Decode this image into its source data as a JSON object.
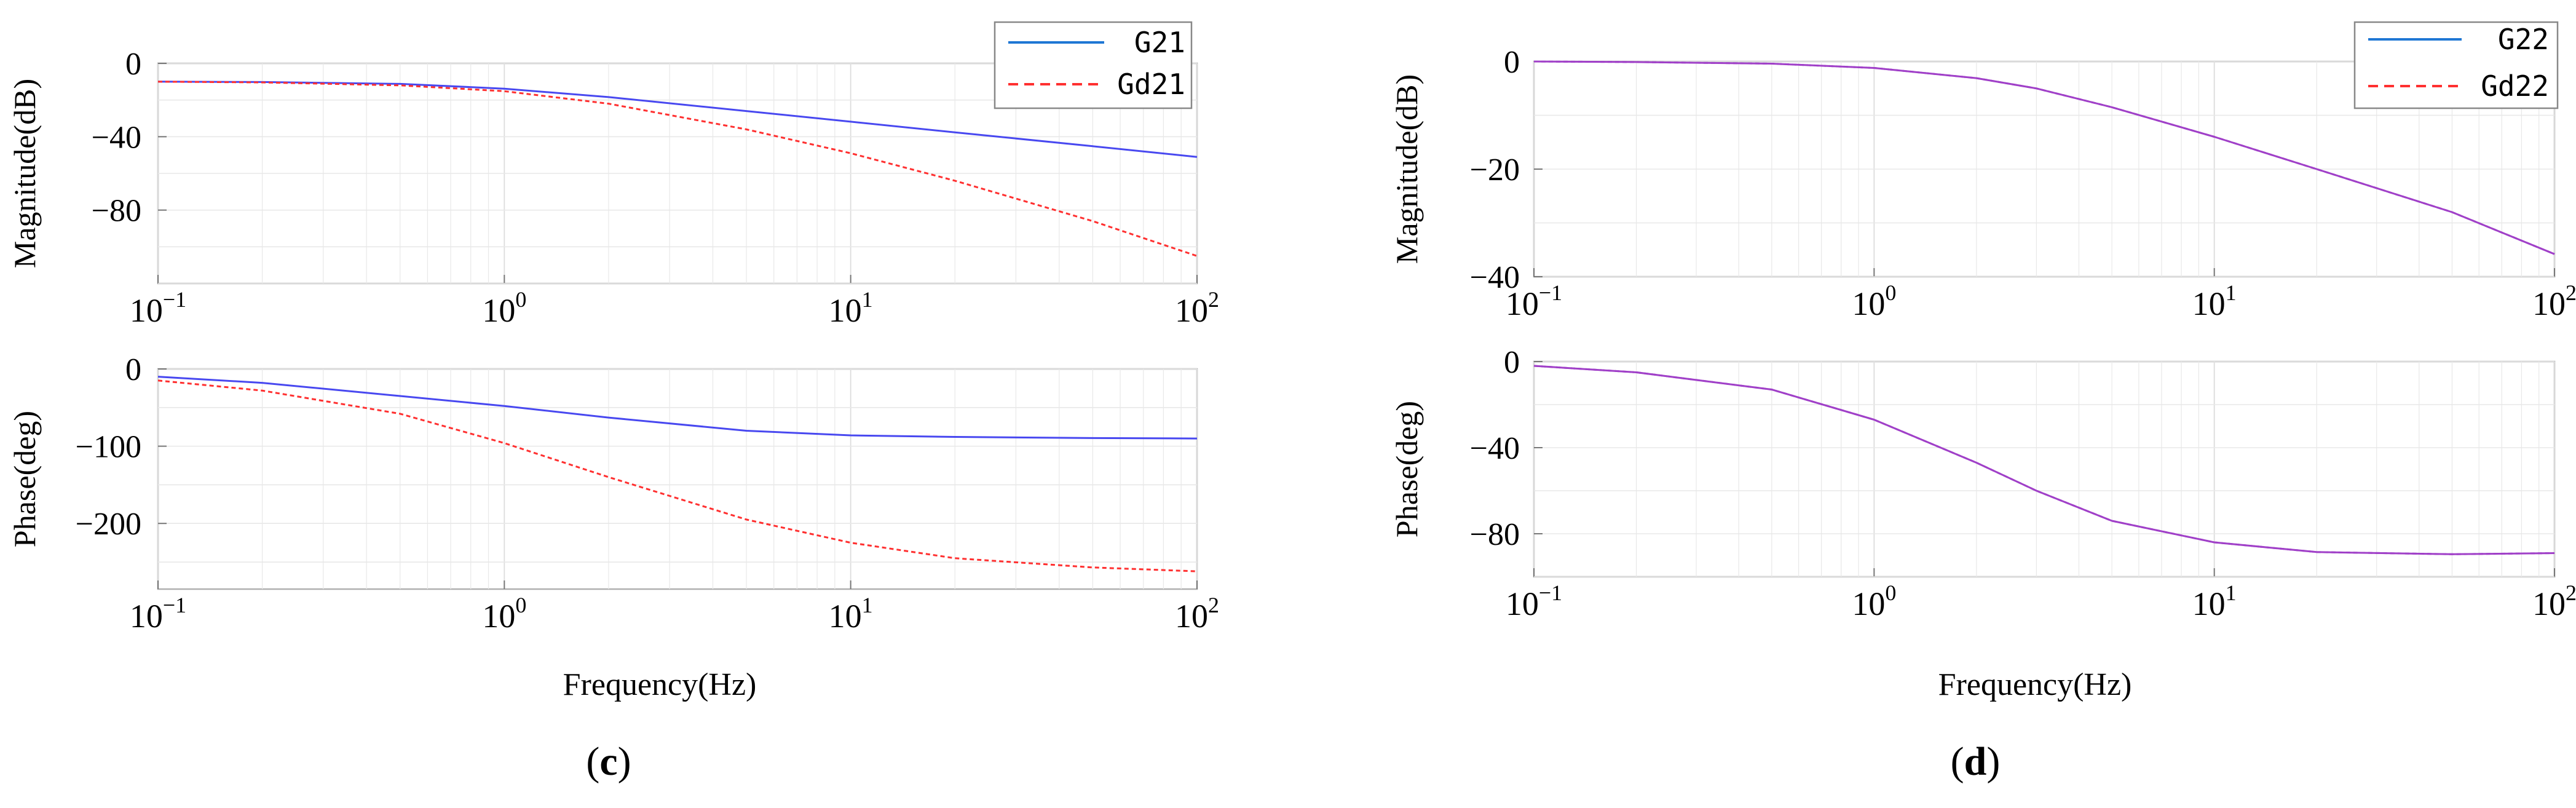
{
  "colors": {
    "g21": "#4848f0",
    "gd21": "#ff3030",
    "g22": "#a040c8",
    "legend_solid": "#1f77d4",
    "legend_dashed": "#ff3030",
    "grid": "#e8e8e8",
    "axis": "#b0b0b0"
  },
  "panels": [
    {
      "id": "c",
      "caption": "c",
      "xlabel": "Frequency(Hz)",
      "legend": [
        {
          "label": "G21",
          "style": "solid"
        },
        {
          "label": "Gd21",
          "style": "dashed"
        }
      ],
      "xticks": [
        {
          "base": "10",
          "exp": "−1"
        },
        {
          "base": "10",
          "exp": "0"
        },
        {
          "base": "10",
          "exp": "1"
        },
        {
          "base": "10",
          "exp": "2"
        }
      ]
    },
    {
      "id": "d",
      "caption": "d",
      "xlabel": "Frequency(Hz)",
      "legend": [
        {
          "label": "G22",
          "style": "solid"
        },
        {
          "label": "Gd22",
          "style": "dashed"
        }
      ],
      "xticks": [
        {
          "base": "10",
          "exp": "−1"
        },
        {
          "base": "10",
          "exp": "0"
        },
        {
          "base": "10",
          "exp": "1"
        },
        {
          "base": "10",
          "exp": "2"
        }
      ]
    }
  ],
  "chart_data": [
    {
      "panel": "c",
      "type": "line",
      "title": "",
      "xlabel": "",
      "ylabel": "Magnitude(dB)",
      "xscale": "log",
      "xlim": [
        0.1,
        100
      ],
      "ylim": [
        -120,
        0
      ],
      "yticks": [
        0,
        -40,
        -80
      ],
      "ytick_labels": [
        "0",
        "−40",
        "−80"
      ],
      "grid": true,
      "series": [
        {
          "name": "G21",
          "style": "solid",
          "colorKey": "g21",
          "x": [
            0.1,
            0.2,
            0.5,
            1,
            2,
            5,
            10,
            20,
            50,
            100
          ],
          "y": [
            -10,
            -10.2,
            -11.2,
            -13.8,
            -18.4,
            -26,
            -31.8,
            -37.6,
            -45.2,
            -51
          ]
        },
        {
          "name": "Gd21",
          "style": "dashed",
          "colorKey": "gd21",
          "x": [
            0.1,
            0.2,
            0.5,
            1,
            2,
            5,
            10,
            20,
            50,
            100
          ],
          "y": [
            -10,
            -10.4,
            -12,
            -15.2,
            -22,
            -36,
            -49,
            -64,
            -86,
            -105
          ]
        }
      ]
    },
    {
      "panel": "c",
      "type": "line",
      "title": "",
      "xlabel": "",
      "ylabel": "Phase(deg)",
      "xscale": "log",
      "xlim": [
        0.1,
        100
      ],
      "ylim": [
        -285,
        0
      ],
      "yticks": [
        0,
        -100,
        -200
      ],
      "ytick_labels": [
        "0",
        "−100",
        "−200"
      ],
      "grid": true,
      "series": [
        {
          "name": "G21",
          "style": "solid",
          "colorKey": "g21",
          "x": [
            0.1,
            0.2,
            0.5,
            1,
            2,
            5,
            10,
            20,
            50,
            100
          ],
          "y": [
            -10,
            -18,
            -35,
            -48,
            -63,
            -80,
            -86,
            -88,
            -89.5,
            -90
          ]
        },
        {
          "name": "Gd21",
          "style": "dashed",
          "colorKey": "gd21",
          "x": [
            0.1,
            0.2,
            0.5,
            1,
            2,
            5,
            10,
            20,
            50,
            100
          ],
          "y": [
            -15,
            -28,
            -58,
            -96,
            -140,
            -195,
            -225,
            -245,
            -257,
            -262
          ]
        }
      ]
    },
    {
      "panel": "d",
      "type": "line",
      "title": "",
      "xlabel": "",
      "ylabel": "Magnitude(dB)",
      "xscale": "log",
      "xlim": [
        0.1,
        100
      ],
      "ylim": [
        -40,
        0
      ],
      "yticks": [
        0,
        -20,
        -40
      ],
      "ytick_labels": [
        "0",
        "−20",
        "−40"
      ],
      "grid": true,
      "series": [
        {
          "name": "G22",
          "style": "solid",
          "colorKey": "g22",
          "x": [
            0.1,
            0.2,
            0.5,
            1,
            2,
            3,
            5,
            10,
            20,
            50,
            100
          ],
          "y": [
            0,
            -0.1,
            -0.4,
            -1.2,
            -3.1,
            -5,
            -8.5,
            -14,
            -20,
            -28,
            -35.8
          ]
        },
        {
          "name": "Gd22",
          "style": "dashed",
          "colorKey": "g22",
          "x": [
            0.1,
            0.2,
            0.5,
            1,
            2,
            3,
            5,
            10,
            20,
            50,
            100
          ],
          "y": [
            0,
            -0.1,
            -0.4,
            -1.2,
            -3.1,
            -5,
            -8.5,
            -14,
            -20,
            -28,
            -35.8
          ]
        }
      ]
    },
    {
      "panel": "d",
      "type": "line",
      "title": "",
      "xlabel": "",
      "ylabel": "Phase(deg)",
      "xscale": "log",
      "xlim": [
        0.1,
        100
      ],
      "ylim": [
        -100,
        0
      ],
      "yticks": [
        0,
        -40,
        -80
      ],
      "ytick_labels": [
        "0",
        "−40",
        "−80"
      ],
      "grid": true,
      "series": [
        {
          "name": "G22",
          "style": "solid",
          "colorKey": "g22",
          "x": [
            0.1,
            0.2,
            0.5,
            1,
            2,
            3,
            5,
            10,
            20,
            50,
            100
          ],
          "y": [
            -2,
            -5,
            -13,
            -27,
            -47,
            -60,
            -74,
            -84,
            -88.5,
            -89.5,
            -89
          ]
        },
        {
          "name": "Gd22",
          "style": "dashed",
          "colorKey": "g22",
          "x": [
            0.1,
            0.2,
            0.5,
            1,
            2,
            3,
            5,
            10,
            20,
            50,
            100
          ],
          "y": [
            -2,
            -5,
            -13,
            -27,
            -47,
            -60,
            -74,
            -84,
            -88.5,
            -89.5,
            -89
          ]
        }
      ]
    }
  ]
}
